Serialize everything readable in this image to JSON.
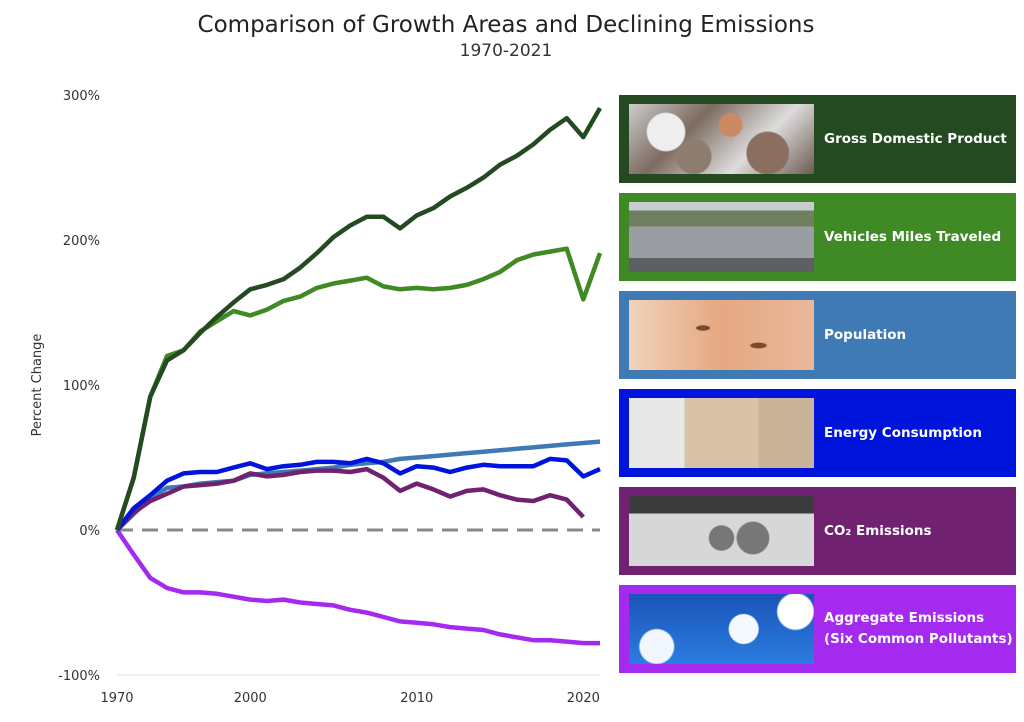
{
  "chart_data": {
    "type": "line",
    "title": "Comparison of Growth Areas and Declining Emissions",
    "subtitle": "1970-2021",
    "xlabel": "",
    "ylabel": "Percent Change",
    "ylim": [
      -100,
      300
    ],
    "yticks": [
      "300%",
      "200%",
      "100%",
      "0%",
      "-100%"
    ],
    "ytick_values": [
      300,
      200,
      100,
      0,
      -100
    ],
    "xtick_labels": [
      "1970",
      "2000",
      "2010",
      "2020"
    ],
    "grid": false,
    "reference_line": {
      "value": 0,
      "style": "dashed",
      "color": "#888888"
    },
    "x": [
      1970,
      1980,
      1990,
      1995,
      1996,
      1997,
      1998,
      1999,
      2000,
      2001,
      2002,
      2003,
      2004,
      2005,
      2006,
      2007,
      2008,
      2009,
      2010,
      2011,
      2012,
      2013,
      2014,
      2015,
      2016,
      2017,
      2018,
      2019,
      2020,
      2021
    ],
    "legend_position": "right",
    "series": [
      {
        "name": "Gross Domestic Product",
        "color": "#244a22",
        "image": "coins",
        "values": [
          0,
          36,
          92,
          117,
          124,
          136,
          147,
          157,
          166,
          169,
          173,
          181,
          191,
          202,
          210,
          216,
          216,
          208,
          217,
          222,
          230,
          236,
          243,
          252,
          258,
          266,
          276,
          284,
          271,
          291
        ]
      },
      {
        "name": "Vehicles Miles Traveled",
        "color": "#3f8a24",
        "image": "traffic",
        "values": [
          0,
          36,
          92,
          120,
          124,
          137,
          144,
          151,
          148,
          152,
          158,
          161,
          167,
          170,
          172,
          174,
          168,
          166,
          167,
          166,
          167,
          169,
          173,
          178,
          186,
          190,
          192,
          194,
          159,
          191
        ]
      },
      {
        "name": "Population",
        "color": "#3f7ab5",
        "image": "baby",
        "values": [
          0,
          11,
          22,
          29,
          30,
          32,
          33,
          34,
          38,
          39,
          40,
          41,
          42,
          43,
          45,
          46,
          47,
          49,
          50,
          51,
          52,
          53,
          54,
          55,
          56,
          57,
          58,
          59,
          60,
          61
        ]
      },
      {
        "name": "Energy Consumption",
        "color": "#0015dc",
        "image": "plug",
        "values": [
          0,
          15,
          24,
          34,
          39,
          40,
          40,
          43,
          46,
          42,
          44,
          45,
          47,
          47,
          46,
          49,
          46,
          39,
          44,
          43,
          40,
          43,
          45,
          44,
          44,
          44,
          49,
          48,
          37,
          42
        ]
      },
      {
        "name": "CO₂ Emissions",
        "color": "#702270",
        "image": "exhaust",
        "values": [
          0,
          12,
          20,
          25,
          30,
          31,
          32,
          34,
          39,
          37,
          38,
          40,
          41,
          41,
          40,
          42,
          36,
          27,
          32,
          28,
          23,
          27,
          28,
          24,
          21,
          20,
          24,
          21,
          9,
          null
        ]
      },
      {
        "name": "Aggregate Emissions",
        "name_line2": "(Six Common Pollutants)",
        "color": "#a42af0",
        "image": "smokestacks",
        "values": [
          0,
          -17,
          -33,
          -40,
          -43,
          -43,
          -44,
          -46,
          -48,
          -49,
          -48,
          -50,
          -51,
          -52,
          -55,
          -57,
          -60,
          -63,
          -64,
          -65,
          -67,
          -68,
          -69,
          -72,
          -74,
          -76,
          -76,
          -77,
          -78,
          -78
        ]
      }
    ]
  }
}
